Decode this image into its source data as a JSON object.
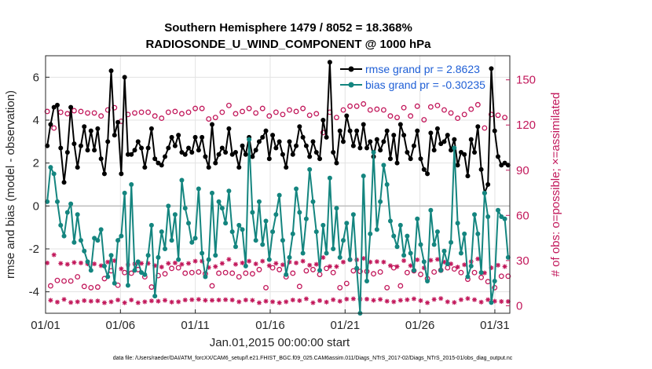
{
  "chart_data": {
    "type": "line",
    "title_line1": "Southern Hemisphere 1479 / 8052 = 18.368%",
    "title_line2": "RADIOSONDE_U_WIND_COMPONENT @ 1000 hPa",
    "xlabel": "Jan.01,2015 00:00:00 start",
    "ylabel": "rmse and bias (model - observation)",
    "y2label": "# of obs: o=possible; ×=assimilated",
    "footer": "data file: /Users/raeder/DAI/ATM_forcXX/CAM6_setup/f.e21.FHIST_BGC.f09_025.CAM6assim.011/Diags_NTrS_2017-02/Diags_NTrS_2015-01/obs_diag_output.nc",
    "x_ticks": [
      "01/01",
      "01/06",
      "01/11",
      "01/16",
      "01/21",
      "01/26",
      "01/31"
    ],
    "x_tick_days": [
      1,
      6,
      11,
      16,
      21,
      26,
      31
    ],
    "xlim": [
      1,
      32
    ],
    "ylim": [
      -5,
      7
    ],
    "y_ticks": [
      -4,
      -2,
      0,
      2,
      4,
      6
    ],
    "y2lim": [
      -5,
      166
    ],
    "y2_ticks": [
      0,
      30,
      60,
      90,
      120,
      150
    ],
    "grid": true,
    "legend_position": "top-right",
    "series": [
      {
        "name": "rmse grand pr = 2.8623",
        "color": "#000000",
        "values": [
          2.8,
          3.8,
          4.6,
          4.7,
          2.7,
          1.1,
          2.5,
          4.6,
          2.9,
          1.8,
          2.8,
          3.7,
          2.6,
          3.5,
          2.6,
          3.6,
          2.2,
          1.5,
          3.0,
          6.3,
          3.3,
          3.9,
          1.5,
          6.0,
          2.4,
          2.4,
          2.6,
          3.0,
          2.7,
          1.8,
          2.7,
          3.6,
          2.2,
          2.0,
          1.9,
          2.3,
          2.7,
          3.2,
          2.8,
          3.3,
          2.5,
          2.4,
          2.7,
          2.5,
          3.2,
          2.6,
          3.2,
          2.3,
          1.8,
          3.8,
          2.0,
          2.4,
          2.7,
          2.5,
          3.6,
          2.4,
          2.5,
          1.8,
          2.8,
          2.4,
          3.2,
          2.3,
          2.6,
          3.0,
          3.2,
          3.5,
          2.2,
          3.3,
          2.7,
          3.0,
          2.4,
          1.8,
          3.0,
          2.4,
          2.8,
          3.7,
          3.2,
          2.8,
          2.3,
          3.0,
          2.5,
          2.2,
          4.0,
          3.2,
          6.7,
          2.5,
          2.0,
          3.5,
          3.0,
          4.2,
          3.5,
          2.8,
          3.5,
          2.7,
          3.8,
          2.7,
          3.0,
          2.3,
          3.1,
          2.6,
          3.0,
          3.5,
          2.2,
          3.3,
          2.0,
          3.8,
          3.3,
          2.5,
          2.2,
          2.8,
          3.5,
          2.2,
          1.7,
          1.5,
          3.4,
          2.6,
          3.6,
          2.9,
          3.0,
          3.3,
          2.6,
          3.1,
          1.9,
          2.5,
          2.4,
          1.4,
          3.1,
          2.5,
          3.7,
          1.7,
          0.6,
          1.0,
          6.4,
          3.5,
          2.3,
          1.9,
          2.0,
          1.9
        ]
      },
      {
        "name": "bias grand pr = -0.30235",
        "color": "#14857f",
        "values": [
          0.2,
          1.8,
          1.5,
          0.2,
          -0.9,
          -1.4,
          -0.3,
          0.1,
          -1.7,
          -0.4,
          -1.6,
          -2.1,
          -2.6,
          -3.0,
          -1.5,
          -1.6,
          -1.1,
          -2.8,
          -3.3,
          -2.3,
          -3.6,
          -1.6,
          -1.4,
          0.6,
          -3.7,
          1.0,
          -3.0,
          -2.6,
          -3.1,
          -3.2,
          -2.3,
          -0.9,
          -4.2,
          -2.4,
          -1.2,
          -2.0,
          0.0,
          -1.6,
          -0.4,
          -2.5,
          1.2,
          -0.1,
          -0.8,
          -1.7,
          -1.5,
          0.8,
          -2.2,
          -3.3,
          -2.5,
          0.6,
          -2.3,
          0.2,
          -0.1,
          -0.8,
          0.7,
          -1.2,
          -1.9,
          -0.9,
          -1.1,
          -2.8,
          3.1,
          -0.3,
          -1.6,
          0.2,
          -1.8,
          -0.7,
          -2.5,
          -1.2,
          -0.4,
          0.5,
          -1.6,
          -3.2,
          -2.4,
          -1.3,
          0.8,
          -0.3,
          -2.2,
          -0.6,
          1.7,
          0.2,
          -1.2,
          -3.0,
          -0.9,
          -2.2,
          1.3,
          -2.0,
          -0.1,
          -2.4,
          -1.6,
          -0.8,
          -2.5,
          -0.4,
          -2.9,
          -5.0,
          1.4,
          -3.5,
          -1.3,
          2.5,
          -1.1,
          0.2,
          1.9,
          1.0,
          -0.7,
          -1.4,
          -1.9,
          -0.9,
          -2.3,
          -1.4,
          -2.2,
          -3.0,
          -0.6,
          -1.8,
          -2.6,
          -3.5,
          -0.2,
          -1.8,
          -1.2,
          -3.0,
          -2.1,
          -2.7,
          -1.7,
          2.7,
          -0.8,
          -2.2,
          -1.3,
          -3.3,
          -2.8,
          -0.4,
          -1.3,
          -3.1,
          0.6,
          -0.5,
          -4.5,
          -3.5,
          -0.2,
          -0.5,
          -0.6,
          -2.4
        ]
      }
    ]
  }
}
